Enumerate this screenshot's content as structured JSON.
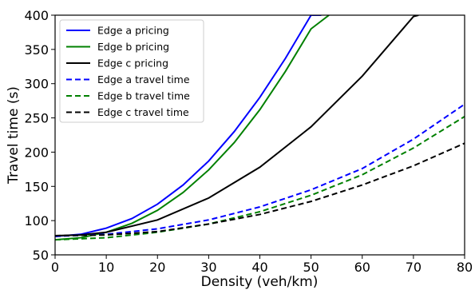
{
  "chart_data": {
    "type": "line",
    "title": "",
    "xlabel": "Density (veh/km)",
    "ylabel": "Travel time (s)",
    "xlim": [
      0,
      80
    ],
    "ylim": [
      50,
      400
    ],
    "xticks": [
      0,
      10,
      20,
      30,
      40,
      50,
      60,
      70,
      80
    ],
    "yticks": [
      50,
      100,
      150,
      200,
      250,
      300,
      350,
      400
    ],
    "grid": false,
    "legend_position": "top-left",
    "series": [
      {
        "name": "Edge a pricing",
        "color": "#0000ff",
        "style": "solid",
        "x": [
          0,
          5,
          10,
          15,
          20,
          25,
          30,
          35,
          40,
          45,
          50,
          52
        ],
        "y": [
          77,
          80,
          89,
          103,
          124,
          152,
          187,
          230,
          280,
          337,
          400,
          400
        ]
      },
      {
        "name": "Edge b pricing",
        "color": "#008000",
        "style": "solid",
        "x": [
          0,
          5,
          10,
          15,
          20,
          25,
          30,
          35,
          40,
          45,
          50,
          53.5
        ],
        "y": [
          72,
          75,
          83,
          96,
          115,
          141,
          174,
          214,
          262,
          318,
          380,
          400
        ]
      },
      {
        "name": "Edge c pricing",
        "color": "#000000",
        "style": "solid",
        "x": [
          0,
          5,
          10,
          20,
          30,
          40,
          50,
          60,
          70,
          71
        ],
        "y": [
          78,
          79,
          83,
          101,
          133,
          178,
          237,
          311,
          398,
          400
        ]
      },
      {
        "name": "Edge a travel time",
        "color": "#0000ff",
        "style": "dashed",
        "x": [
          0,
          10,
          20,
          30,
          40,
          50,
          60,
          70,
          80
        ],
        "y": [
          77,
          80,
          88,
          101,
          120,
          145,
          176,
          219,
          270
        ]
      },
      {
        "name": "Edge b travel time",
        "color": "#008000",
        "style": "dashed",
        "x": [
          0,
          10,
          20,
          30,
          40,
          50,
          60,
          70,
          80
        ],
        "y": [
          72,
          75,
          83,
          95,
          113,
          137,
          167,
          206,
          252
        ]
      },
      {
        "name": "Edge c travel time",
        "color": "#000000",
        "style": "dashed",
        "x": [
          0,
          10,
          20,
          30,
          40,
          50,
          60,
          70,
          80
        ],
        "y": [
          78,
          79,
          84,
          95,
          109,
          128,
          152,
          180,
          213
        ]
      }
    ]
  }
}
